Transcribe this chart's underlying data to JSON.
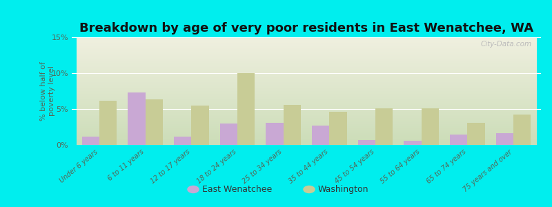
{
  "title": "Breakdown by age of very poor residents in East Wenatchee, WA",
  "categories": [
    "Under 6 years",
    "6 to 11 years",
    "12 to 17 years",
    "18 to 24 years",
    "25 to 34 years",
    "35 to 44 years",
    "45 to 54 years",
    "55 to 64 years",
    "65 to 74 years",
    "75 years and over"
  ],
  "east_wenatchee": [
    1.2,
    7.3,
    1.2,
    3.0,
    3.1,
    2.7,
    0.7,
    0.6,
    1.4,
    1.6
  ],
  "washington": [
    6.2,
    6.3,
    5.5,
    10.0,
    5.6,
    4.6,
    5.1,
    5.1,
    3.1,
    4.2
  ],
  "east_wenatchee_color": "#c9a8d4",
  "washington_color": "#c8cc96",
  "background_color": "#00eeee",
  "plot_bg_top": "#f0f0e0",
  "plot_bg_bottom": "#ccddb8",
  "ylabel": "% below half of\npoverty level",
  "ylim": [
    0,
    15
  ],
  "yticks": [
    0,
    5,
    10,
    15
  ],
  "ytick_labels": [
    "0%",
    "5%",
    "10%",
    "15%"
  ],
  "title_fontsize": 13,
  "legend_labels": [
    "East Wenatchee",
    "Washington"
  ],
  "bar_width": 0.38
}
